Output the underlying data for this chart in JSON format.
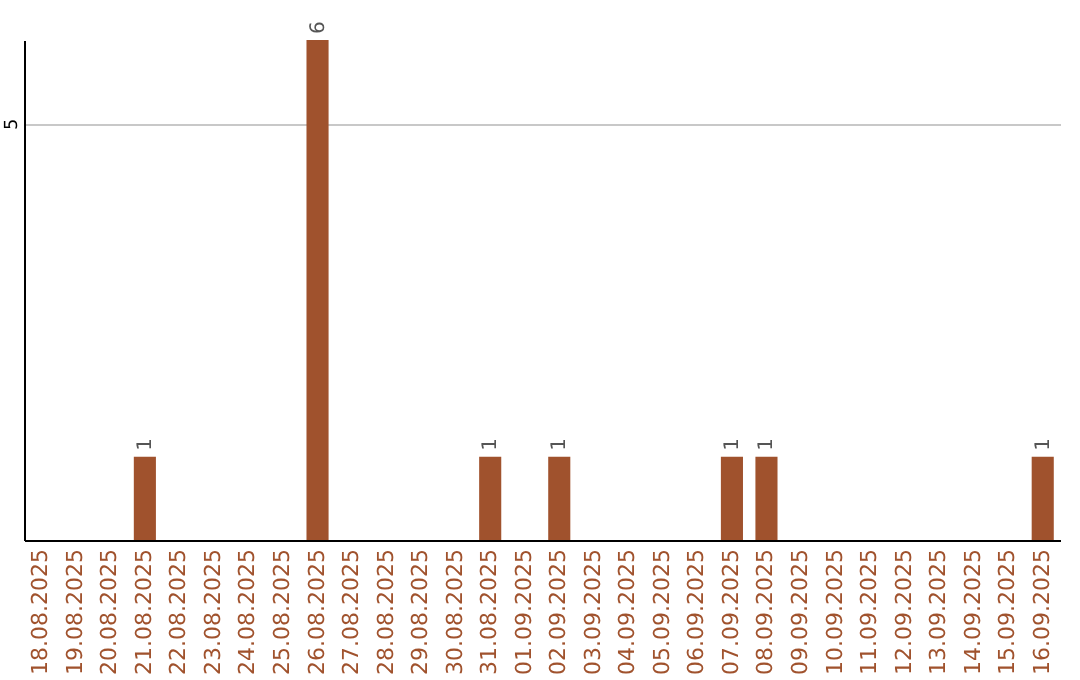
{
  "chart_data": {
    "type": "bar",
    "categories": [
      "18.08.2025",
      "19.08.2025",
      "20.08.2025",
      "21.08.2025",
      "22.08.2025",
      "23.08.2025",
      "24.08.2025",
      "25.08.2025",
      "26.08.2025",
      "27.08.2025",
      "28.08.2025",
      "29.08.2025",
      "30.08.2025",
      "31.08.2025",
      "01.09.2025",
      "02.09.2025",
      "03.09.2025",
      "04.09.2025",
      "05.09.2025",
      "06.09.2025",
      "07.09.2025",
      "08.09.2025",
      "09.09.2025",
      "10.09.2025",
      "11.09.2025",
      "12.09.2025",
      "13.09.2025",
      "14.09.2025",
      "15.09.2025",
      "16.09.2025"
    ],
    "values": [
      0,
      0,
      0,
      1,
      0,
      0,
      0,
      0,
      6,
      0,
      0,
      0,
      0,
      1,
      0,
      1,
      0,
      0,
      0,
      0,
      1,
      1,
      0,
      0,
      0,
      0,
      0,
      0,
      0,
      1
    ],
    "value_labels": [
      null,
      null,
      null,
      "1",
      null,
      null,
      null,
      null,
      "6",
      null,
      null,
      null,
      null,
      "1",
      null,
      "1",
      null,
      null,
      null,
      null,
      "1",
      "1",
      null,
      null,
      null,
      null,
      null,
      null,
      null,
      "1"
    ],
    "color": "#a0522d",
    "ylim": [
      0,
      6
    ],
    "yticks": [
      5
    ],
    "grid": "y"
  }
}
